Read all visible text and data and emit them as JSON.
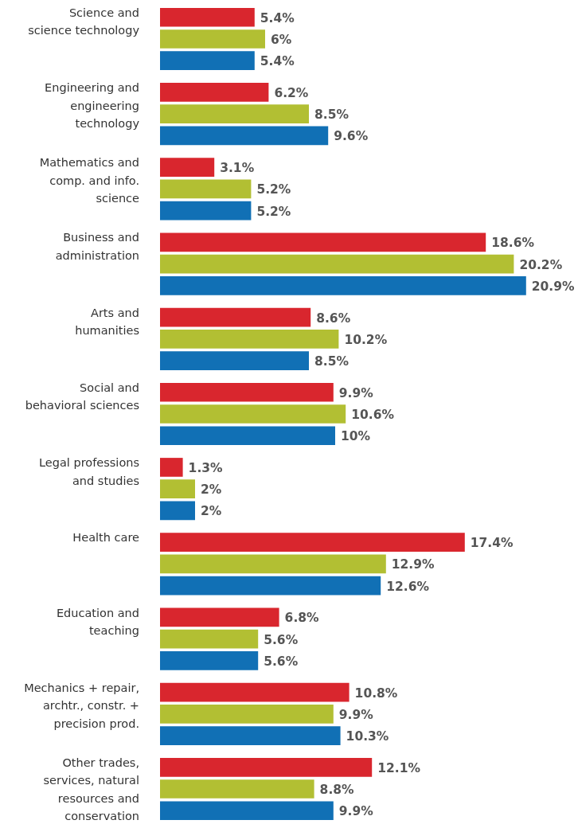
{
  "chart_data": {
    "type": "bar",
    "orientation": "horizontal",
    "categories": [
      "Science and\nscience technology",
      "Engineering and\nengineering\ntechnology",
      "Mathematics and\ncomp. and info.\nscience",
      "Business and\nadministration",
      "Arts and\nhumanities",
      "Social and\nbehavioral sciences",
      "Legal professions\nand studies",
      "Health care",
      "Education and\nteaching",
      "Mechanics + repair,\narchtr., constr. +\nprecision prod.",
      "Other trades,\nservices, natural\nresources and\nconservation"
    ],
    "series": [
      {
        "color": "#d9262e",
        "values": [
          5.4,
          6.2,
          3.1,
          18.6,
          8.6,
          9.9,
          1.3,
          17.4,
          6.8,
          10.8,
          12.1
        ],
        "value_labels": [
          "5.4%",
          "6.2%",
          "3.1%",
          "18.6%",
          "8.6%",
          "9.9%",
          "1.3%",
          "17.4%",
          "6.8%",
          "10.8%",
          "12.1%"
        ]
      },
      {
        "color": "#b2bf33",
        "values": [
          6,
          8.5,
          5.2,
          20.2,
          10.2,
          10.6,
          2,
          12.9,
          5.6,
          9.9,
          8.8
        ],
        "value_labels": [
          "6%",
          "8.5%",
          "5.2%",
          "20.2%",
          "10.2%",
          "10.6%",
          "2%",
          "12.9%",
          "5.6%",
          "9.9%",
          "8.8%"
        ]
      },
      {
        "color": "#1170b5",
        "values": [
          5.4,
          9.6,
          5.2,
          20.9,
          8.5,
          10,
          2,
          12.6,
          5.6,
          10.3,
          9.9
        ],
        "value_labels": [
          "5.4%",
          "9.6%",
          "5.2%",
          "20.9%",
          "8.5%",
          "10%",
          "2%",
          "12.6%",
          "5.6%",
          "10.3%",
          "9.9%"
        ]
      }
    ]
  }
}
